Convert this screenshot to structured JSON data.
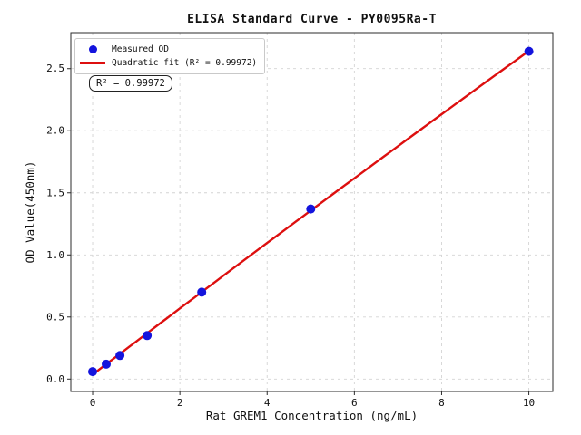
{
  "title": "ELISA Standard Curve - PY0095Ra-T",
  "legend": {
    "measured_label": "Measured OD",
    "fit_label": "Quadratic fit (R² = 0.99972)"
  },
  "annotation": "R² = 0.99972",
  "colors": {
    "point": "#1414dd",
    "line": "#dd0f0f",
    "grid": "#d4d4d4",
    "spine": "#2b2b2b",
    "text": "#111111"
  },
  "chart_data": {
    "type": "scatter",
    "title": "ELISA Standard Curve - PY0095Ra-T",
    "xlabel": "Rat GREM1 Concentration (ng/mL)",
    "ylabel": "OD Value(450nm)",
    "x": [
      0,
      0.3125,
      0.625,
      1.25,
      2.5,
      5,
      10
    ],
    "series": [
      {
        "name": "Measured OD",
        "type": "scatter",
        "values": [
          0.06,
          0.12,
          0.19,
          0.35,
          0.7,
          1.37,
          2.64
        ]
      },
      {
        "name": "Quadratic fit",
        "type": "line",
        "fit": "quadratic",
        "r_squared": 0.99972
      }
    ],
    "fit_x_range": [
      0,
      10
    ],
    "xlim": [
      -0.5,
      10.55
    ],
    "ylim": [
      -0.1,
      2.79
    ],
    "xticks": [
      0,
      2,
      4,
      6,
      8,
      10
    ],
    "yticks": [
      0.0,
      0.5,
      1.0,
      1.5,
      2.0,
      2.5
    ],
    "grid": true,
    "legend_position": "upper left"
  }
}
